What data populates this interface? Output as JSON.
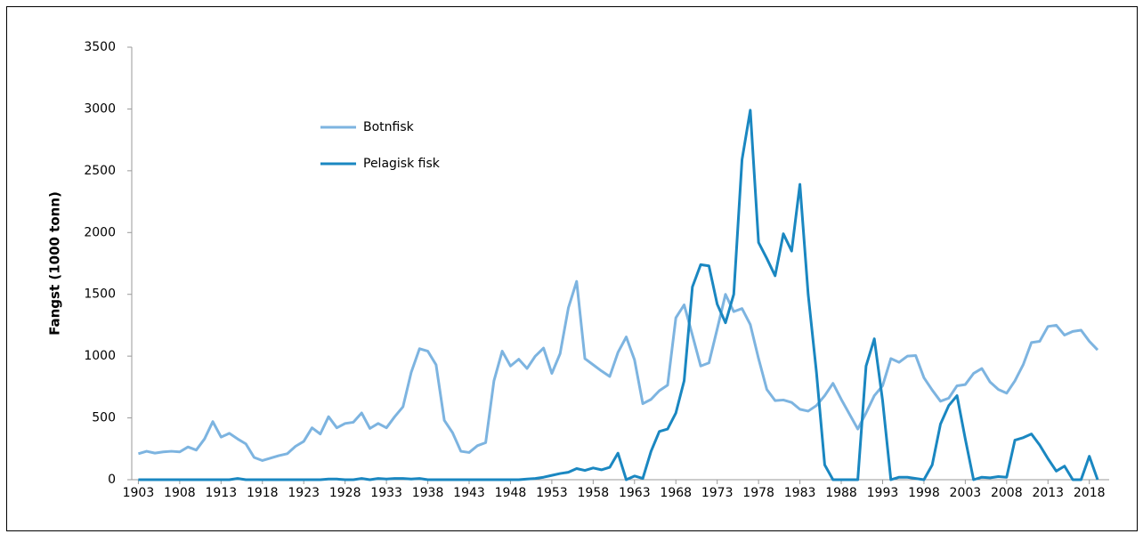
{
  "chart_data": {
    "type": "line",
    "ylabel": "Fangst (1000 tonn)",
    "x": [
      1903,
      1904,
      1905,
      1906,
      1907,
      1908,
      1909,
      1910,
      1911,
      1912,
      1913,
      1914,
      1915,
      1916,
      1917,
      1918,
      1919,
      1920,
      1921,
      1922,
      1923,
      1924,
      1925,
      1926,
      1927,
      1928,
      1929,
      1930,
      1931,
      1932,
      1933,
      1934,
      1935,
      1936,
      1937,
      1938,
      1939,
      1940,
      1941,
      1942,
      1943,
      1944,
      1945,
      1946,
      1947,
      1948,
      1949,
      1950,
      1951,
      1952,
      1953,
      1954,
      1955,
      1956,
      1957,
      1958,
      1959,
      1960,
      1961,
      1962,
      1963,
      1964,
      1965,
      1966,
      1967,
      1968,
      1969,
      1970,
      1971,
      1972,
      1973,
      1974,
      1975,
      1976,
      1977,
      1978,
      1979,
      1980,
      1981,
      1982,
      1983,
      1984,
      1985,
      1986,
      1987,
      1988,
      1989,
      1990,
      1991,
      1992,
      1993,
      1994,
      1995,
      1996,
      1997,
      1998,
      1999,
      2000,
      2001,
      2002,
      2003,
      2004,
      2005,
      2006,
      2007,
      2008,
      2009,
      2010,
      2011,
      2012,
      2013,
      2014,
      2015,
      2016,
      2017,
      2018,
      2019
    ],
    "series": [
      {
        "name": "Botnfisk",
        "color": "#7db4e0",
        "values": [
          210,
          230,
          215,
          225,
          230,
          225,
          265,
          240,
          330,
          470,
          345,
          375,
          330,
          290,
          180,
          155,
          175,
          195,
          210,
          270,
          310,
          420,
          370,
          510,
          420,
          455,
          465,
          540,
          415,
          455,
          420,
          510,
          590,
          870,
          1060,
          1040,
          930,
          480,
          380,
          230,
          220,
          275,
          300,
          800,
          1040,
          920,
          975,
          900,
          1000,
          1065,
          860,
          1020,
          1390,
          1605,
          980,
          930,
          880,
          835,
          1030,
          1155,
          970,
          615,
          650,
          720,
          765,
          1310,
          1415,
          1170,
          920,
          945,
          1220,
          1500,
          1360,
          1385,
          1255,
          980,
          730,
          640,
          645,
          625,
          570,
          555,
          600,
          680,
          780,
          650,
          530,
          410,
          540,
          680,
          760,
          980,
          950,
          1000,
          1005,
          825,
          725,
          635,
          660,
          760,
          770,
          860,
          900,
          790,
          730,
          700,
          800,
          930,
          1110,
          1120,
          1240,
          1250,
          1170,
          1200,
          1210,
          1120,
          1050
        ]
      },
      {
        "name": "Pelagisk fisk",
        "color": "#1a87c1",
        "values": [
          0,
          0,
          0,
          0,
          0,
          0,
          0,
          0,
          0,
          0,
          0,
          0,
          10,
          0,
          0,
          0,
          0,
          0,
          0,
          0,
          0,
          0,
          0,
          5,
          5,
          0,
          0,
          10,
          0,
          10,
          5,
          10,
          10,
          5,
          10,
          0,
          0,
          0,
          0,
          0,
          0,
          0,
          0,
          0,
          0,
          0,
          0,
          5,
          10,
          20,
          35,
          50,
          60,
          90,
          75,
          95,
          80,
          100,
          215,
          0,
          30,
          10,
          230,
          390,
          410,
          540,
          800,
          1560,
          1740,
          1730,
          1420,
          1270,
          1500,
          2590,
          2990,
          1920,
          1790,
          1650,
          1990,
          1850,
          2390,
          1500,
          870,
          120,
          0,
          0,
          0,
          0,
          920,
          1140,
          640,
          0,
          20,
          20,
          10,
          0,
          120,
          450,
          600,
          680,
          330,
          0,
          20,
          15,
          25,
          20,
          320,
          340,
          370,
          280,
          170,
          70,
          110,
          0,
          0,
          190,
          0
        ]
      }
    ],
    "xlim": [
      1902.2,
      2020.4
    ],
    "xticks": [
      1903,
      1908,
      1913,
      1918,
      1923,
      1928,
      1933,
      1938,
      1943,
      1948,
      1953,
      1958,
      1963,
      1968,
      1973,
      1978,
      1983,
      1988,
      1993,
      1998,
      2003,
      2008,
      2013,
      2018
    ],
    "ylim": [
      0,
      3500
    ],
    "yticks": [
      0,
      500,
      1000,
      1500,
      2000,
      2500,
      3000,
      3500
    ]
  }
}
